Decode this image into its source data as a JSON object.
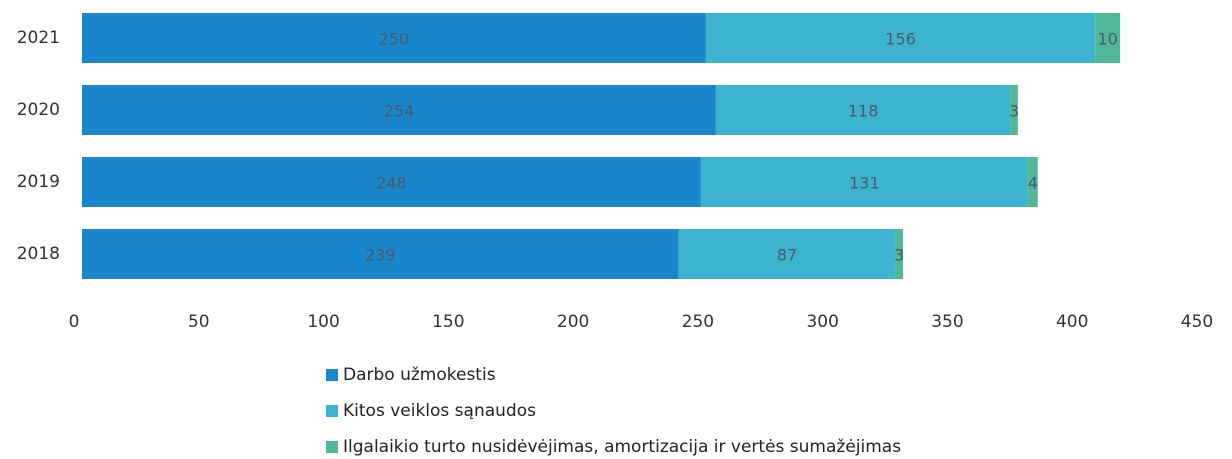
{
  "chart_data": {
    "type": "stacked_barh",
    "categories": [
      "2021",
      "2020",
      "2019",
      "2018"
    ],
    "series": [
      {
        "name": "Darbo užmokestis",
        "color": "#1a86cc",
        "values": [
          250,
          254,
          248,
          239
        ]
      },
      {
        "name": "Kitos veiklos sąnaudos",
        "color": "#3db4cf",
        "values": [
          156,
          118,
          131,
          87
        ]
      },
      {
        "name": "Ilgalaikio turto nusidėvėjimas, amortizacija ir vertės sumažėjimas",
        "color": "#4fb898",
        "values": [
          10,
          3,
          4,
          3
        ]
      }
    ],
    "xlim": [
      0,
      450
    ],
    "xticks": [
      0,
      50,
      100,
      150,
      200,
      250,
      300,
      350,
      400,
      450
    ],
    "grid": false,
    "legend": "bottom"
  }
}
